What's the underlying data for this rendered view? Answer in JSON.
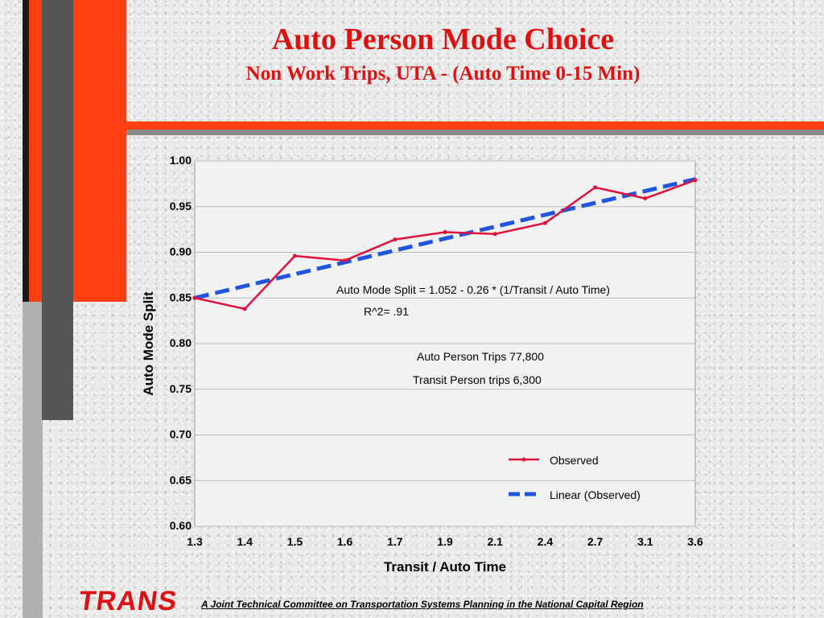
{
  "colors": {
    "accent_orange": "#ff3f12",
    "title_red": "#e01010",
    "observed_line": "#e0103a",
    "linear_line": "#1f55e0",
    "dark_gray": "#555555",
    "plot_bg": "#f2f2f2"
  },
  "slide": {
    "title": "Auto Person Mode Choice",
    "subtitle": "Non Work Trips, UTA - (Auto Time 0-15 Min)",
    "logo_text": "TRANS",
    "footer": "A Joint Technical Committee on Transportation Systems Planning in the National Capital Region"
  },
  "chart_data": {
    "type": "line",
    "title": "",
    "xlabel": "Transit / Auto Time",
    "ylabel": "Auto Mode Split",
    "categories": [
      "1.3",
      "1.4",
      "1.5",
      "1.6",
      "1.7",
      "1.9",
      "2.1",
      "2.4",
      "2.7",
      "3.1",
      "3.6"
    ],
    "y_ticks": [
      "0.60",
      "0.65",
      "0.70",
      "0.75",
      "0.80",
      "0.85",
      "0.90",
      "0.95",
      "1.00"
    ],
    "ylim": [
      0.6,
      1.0
    ],
    "grid": true,
    "legend_position": "bottom-right",
    "series": [
      {
        "name": "Observed",
        "style": "line-with-markers",
        "values": [
          0.85,
          0.838,
          0.896,
          0.891,
          0.914,
          0.922,
          0.92,
          0.932,
          0.971,
          0.959,
          0.979
        ]
      },
      {
        "name": "Linear (Observed)",
        "style": "dashed",
        "values": [
          0.85,
          0.863,
          0.876,
          0.889,
          0.902,
          0.915,
          0.928,
          0.941,
          0.954,
          0.967,
          0.98
        ]
      }
    ],
    "annotations": [
      "Auto Mode Split = 1.052 - 0.26 * (1/Transit / Auto Time)",
      "R^2= .91",
      "Auto Person Trips   77,800",
      "Transit Person trips    6,300"
    ]
  }
}
